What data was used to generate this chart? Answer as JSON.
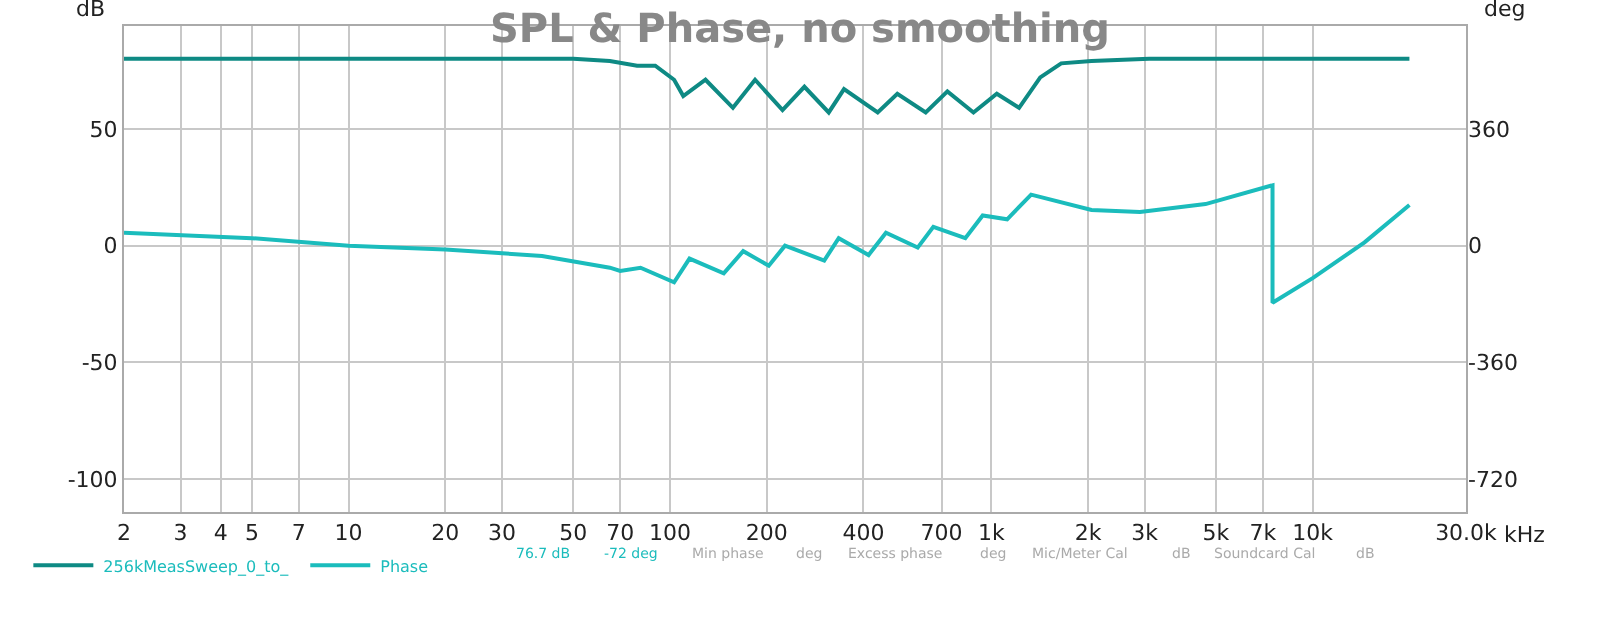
{
  "chart_data": {
    "type": "line",
    "title": "SPL & Phase, no smoothing",
    "ylabel": "dB",
    "y2label": "deg",
    "xlim": [
      2,
      30000
    ],
    "log": "x",
    "xticks": [
      2,
      3,
      4,
      5,
      7,
      10,
      20,
      30,
      50,
      70,
      100,
      200,
      400,
      700,
      {
        "value": 1000,
        "label": "1k"
      },
      {
        "value": 2000,
        "label": "2k"
      },
      {
        "value": 3000,
        "label": "3k"
      },
      {
        "value": 5000,
        "label": "5k"
      },
      {
        "value": 7000,
        "label": "7k"
      },
      {
        "value": 10000,
        "label": "10k"
      },
      {
        "value": 30000,
        "label": "30.0k"
      }
    ],
    "xlabel": "kHz",
    "ylim": [
      -114,
      94
    ],
    "yticks": [
      -100,
      -50,
      0,
      50
    ],
    "y2lim": [
      -820.8,
      676.8
    ],
    "y2ticks": [
      -720,
      -360,
      0,
      360
    ],
    "grid": true,
    "legend": "bottom",
    "marker": "none",
    "line_style": "solid",
    "series": [
      {
        "name": "256kMeasSweep_0_to_",
        "color": "#0e8a84",
        "x": [
          2,
          10,
          50,
          65,
          79,
          90,
          103,
          110,
          129,
          157,
          184,
          224,
          262,
          312,
          348,
          443,
          510,
          625,
          730,
          880,
          1040,
          1220,
          1420,
          1650,
          2050,
          3100,
          20000
        ],
        "values": [
          80,
          80,
          80,
          79,
          77,
          77,
          71,
          64,
          71,
          59,
          71,
          58,
          68,
          57,
          67,
          57,
          65,
          57,
          66,
          57,
          65,
          59,
          72,
          78,
          79,
          80,
          80
        ]
      },
      {
        "name": "Phase",
        "color": "#1bbcbc",
        "axis": "y2",
        "x": [
          2,
          5,
          10,
          20,
          40,
          65,
          70,
          81,
          103,
          115,
          147,
          169,
          203,
          228,
          302,
          335,
          415,
          470,
          590,
          660,
          830,
          940,
          1120,
          1330,
          2050,
          2900,
          4640,
          7500,
          7500,
          10000,
          14500,
          20000
        ],
        "values": [
          40,
          23,
          0,
          -12,
          -32,
          -68,
          -78,
          -68,
          -113,
          -40,
          -85,
          -17,
          -62,
          0,
          -46,
          23,
          -29,
          40,
          -6,
          58,
          23,
          93,
          81,
          157,
          110,
          104,
          128,
          186,
          -176,
          -100,
          10,
          125
        ]
      }
    ],
    "annotations": [
      "76.7 dB",
      "-72 deg",
      "Min phase",
      "deg",
      "Excess phase",
      "deg",
      "Mic/Meter Cal",
      "dB",
      "Soundcard Cal",
      "dB"
    ]
  }
}
